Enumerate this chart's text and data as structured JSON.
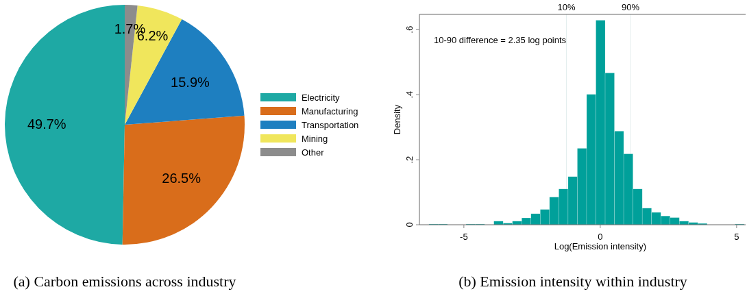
{
  "chart_data": [
    {
      "type": "pie",
      "title": "(a) Carbon emissions across industry",
      "categories": [
        "Electricity",
        "Manufacturing",
        "Transportation",
        "Mining",
        "Other"
      ],
      "values": [
        49.7,
        26.5,
        15.9,
        6.2,
        1.7
      ],
      "colors": [
        "#1ea9a4",
        "#d96d1b",
        "#1e7fc0",
        "#f0e65c",
        "#8c8c8c"
      ],
      "value_labels": [
        "49.7%",
        "26.5%",
        "15.9%",
        "6.2%",
        "1.7%"
      ],
      "legend": "right"
    },
    {
      "type": "histogram",
      "title": "(b) Emission intensity within industry",
      "xlabel": "Log(Emission intensity)",
      "ylabel": "Density",
      "color": "#00a09a",
      "bins": [
        -6.28,
        -5.94,
        -5.6,
        -5.26,
        -4.92,
        -4.58,
        -4.24,
        -3.9,
        -3.56,
        -3.22,
        -2.88,
        -2.54,
        -2.2,
        -1.86,
        -1.52,
        -1.18,
        -0.84,
        -0.5,
        -0.16,
        0.18,
        0.52,
        0.86,
        1.2,
        1.54,
        1.88,
        2.22,
        2.56,
        2.9,
        3.24,
        3.58,
        3.92,
        4.26,
        4.6,
        4.94,
        5.28
      ],
      "values": [
        0.002,
        0.002,
        0,
        0,
        0.002,
        0.002,
        0,
        0.011,
        0.005,
        0.011,
        0.021,
        0.034,
        0.047,
        0.085,
        0.11,
        0.148,
        0.235,
        0.401,
        0.629,
        0.467,
        0.288,
        0.218,
        0.11,
        0.051,
        0.038,
        0.027,
        0.022,
        0.011,
        0.007,
        0.004,
        0,
        0,
        0,
        0.002
      ],
      "xlim": [
        -6.63,
        5.33
      ],
      "ylim": [
        0,
        0.647
      ],
      "xticks": [
        -5,
        0,
        5
      ],
      "yticks": [
        0,
        {
          "value": 0.2,
          "label": ".2"
        },
        {
          "value": 0.4,
          "label": ".4"
        },
        {
          "value": 0.6,
          "label": ".6"
        }
      ],
      "ref_lines": [
        {
          "axis": "x",
          "value": -1.24,
          "color": "#e4eeee"
        },
        {
          "axis": "x",
          "value": 1.11,
          "color": "#e4eeee"
        }
      ],
      "annotations": [
        "10-90 difference = 2.35 log points",
        "10%",
        "90%"
      ]
    }
  ]
}
